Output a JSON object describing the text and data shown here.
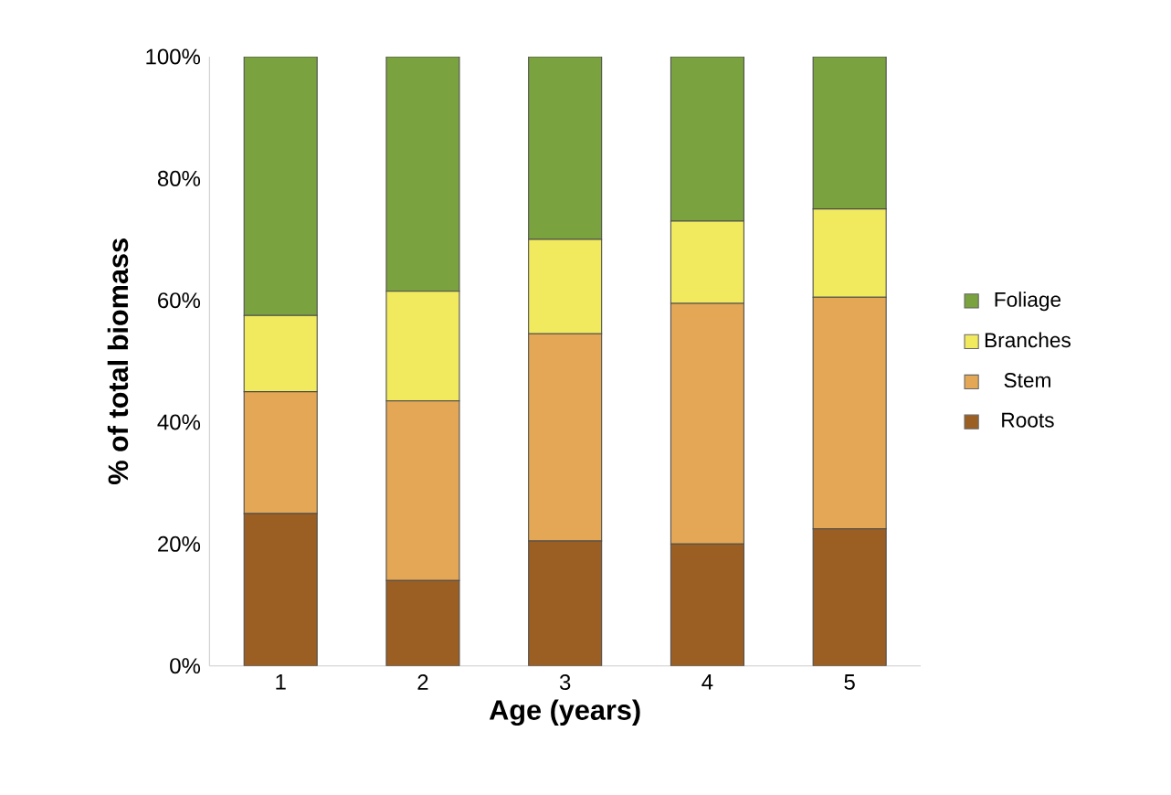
{
  "chart_data": {
    "type": "bar",
    "stacked": true,
    "xlabel": "Age (years)",
    "ylabel": "% of total biomass",
    "categories": [
      "1",
      "2",
      "3",
      "4",
      "5"
    ],
    "series": [
      {
        "name": "Roots",
        "color": "#9b5f24",
        "values": [
          25,
          14,
          20.5,
          20,
          22.5
        ]
      },
      {
        "name": "Stem",
        "color": "#e3a755",
        "values": [
          20,
          29.5,
          34,
          39.5,
          38
        ]
      },
      {
        "name": "Branches",
        "color": "#f1ea5f",
        "values": [
          12.5,
          18,
          15.5,
          13.5,
          14.5
        ]
      },
      {
        "name": "Foliage",
        "color": "#7aa23f",
        "values": [
          42.5,
          38.5,
          30,
          27,
          25
        ]
      }
    ],
    "ylim": [
      0,
      100
    ],
    "yticks": [
      {
        "value": 0,
        "label": "0%"
      },
      {
        "value": 20,
        "label": "20%"
      },
      {
        "value": 40,
        "label": "40%"
      },
      {
        "value": 60,
        "label": "60%"
      },
      {
        "value": 80,
        "label": "80%"
      },
      {
        "value": 100,
        "label": "100%"
      }
    ],
    "grid": false,
    "legend": "right"
  }
}
